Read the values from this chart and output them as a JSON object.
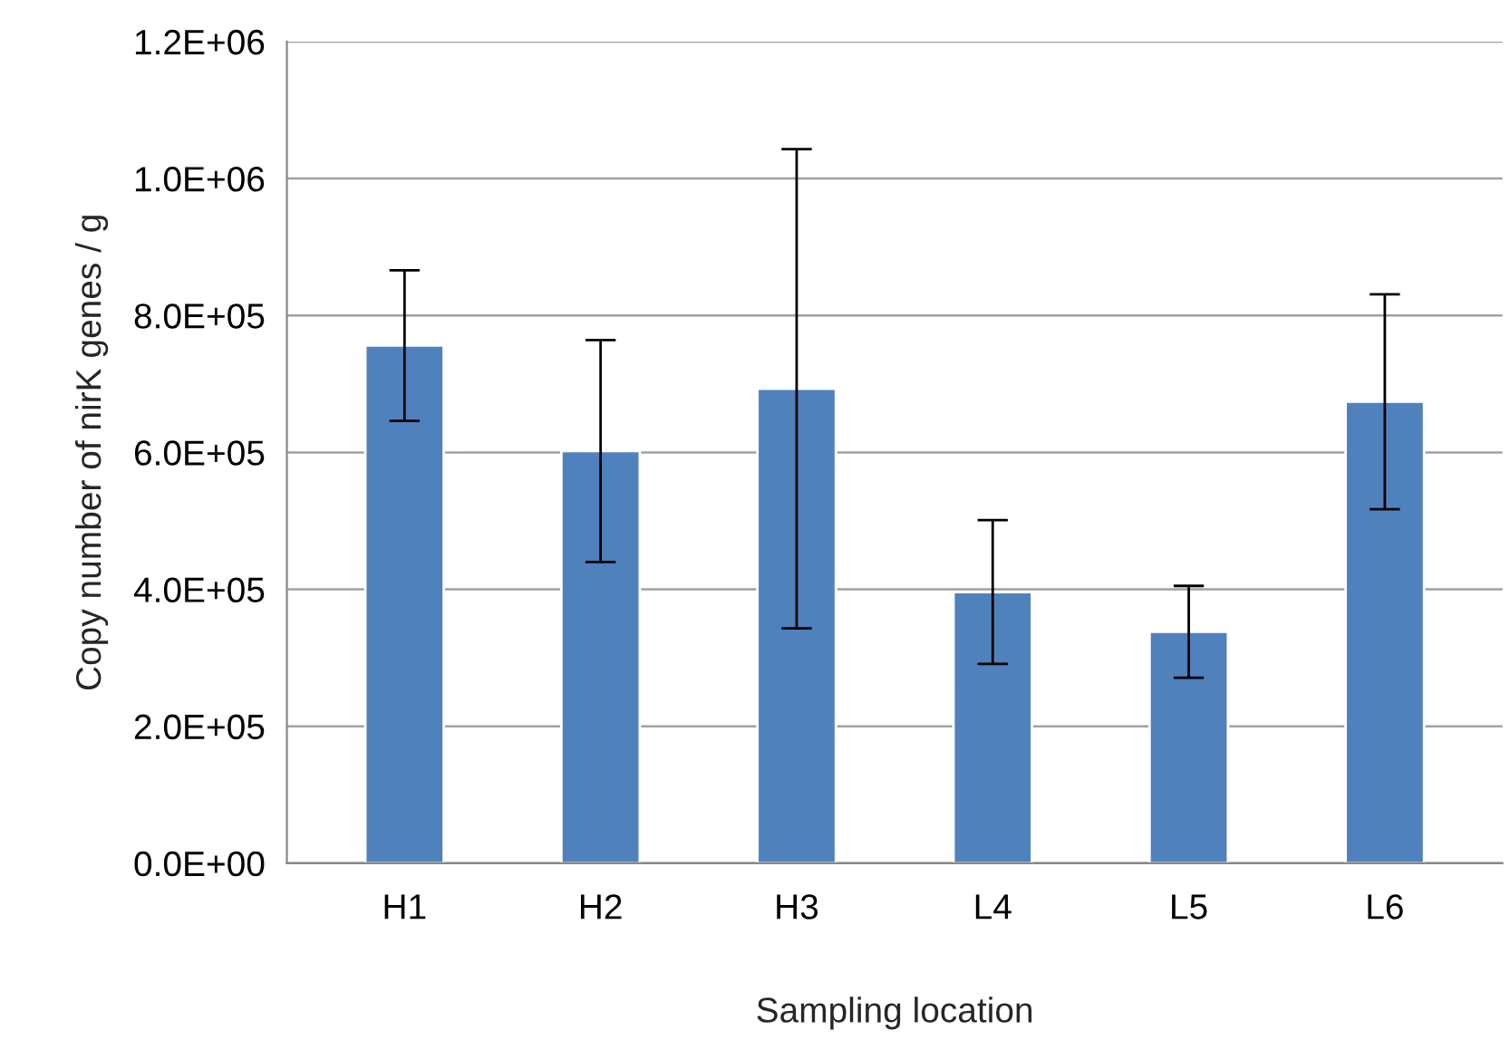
{
  "chart_data": {
    "type": "bar",
    "xlabel": "Sampling location",
    "ylabel": "Copy number of nirK genes / g",
    "categories": [
      "H1",
      "H2",
      "H3",
      "L4",
      "L5",
      "L6"
    ],
    "values": [
      756000,
      602000,
      693000,
      396000,
      338000,
      674000
    ],
    "errors": [
      110000,
      162000,
      350000,
      105000,
      67000,
      157000
    ],
    "color": "#4f81bd",
    "ylim": [
      0,
      1200000
    ],
    "yticks": [
      {
        "value": 0,
        "label": "0.0E+00"
      },
      {
        "value": 200000,
        "label": "2.0E+05"
      },
      {
        "value": 400000,
        "label": "4.0E+05"
      },
      {
        "value": 600000,
        "label": "6.0E+05"
      },
      {
        "value": 800000,
        "label": "8.0E+05"
      },
      {
        "value": 1000000,
        "label": "1.0E+06"
      },
      {
        "value": 1200000,
        "label": "1.2E+06"
      }
    ],
    "grid": "y",
    "legend": false
  }
}
